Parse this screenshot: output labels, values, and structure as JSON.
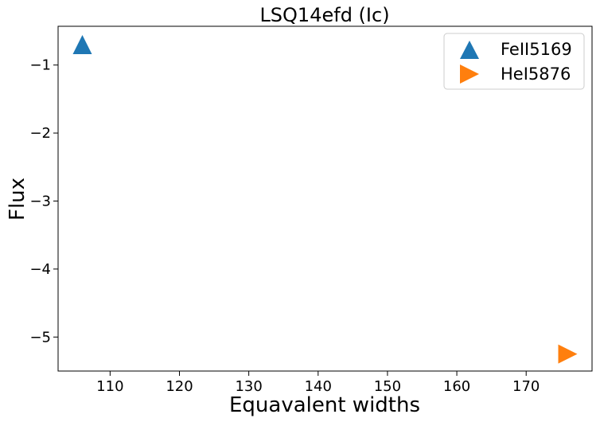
{
  "chart_data": {
    "type": "scatter",
    "title": "LSQ14efd (Ic)",
    "xlabel": "Equavalent widths",
    "ylabel": "Flux",
    "xlim": [
      102.5,
      179.5
    ],
    "ylim": [
      -5.5,
      -0.43
    ],
    "xticks": [
      110,
      120,
      130,
      140,
      150,
      160,
      170
    ],
    "yticks": [
      -1,
      -2,
      -3,
      -4,
      -5
    ],
    "grid": false,
    "legend_position": "top-right",
    "series": [
      {
        "name": "FeII5169",
        "marker": "triangle-up",
        "color": "#1f77b4",
        "points": [
          {
            "x": 106,
            "y": -0.7
          }
        ]
      },
      {
        "name": "HeI5876",
        "marker": "triangle-right",
        "color": "#ff7f0e",
        "points": [
          {
            "x": 176,
            "y": -5.25
          }
        ]
      }
    ]
  }
}
